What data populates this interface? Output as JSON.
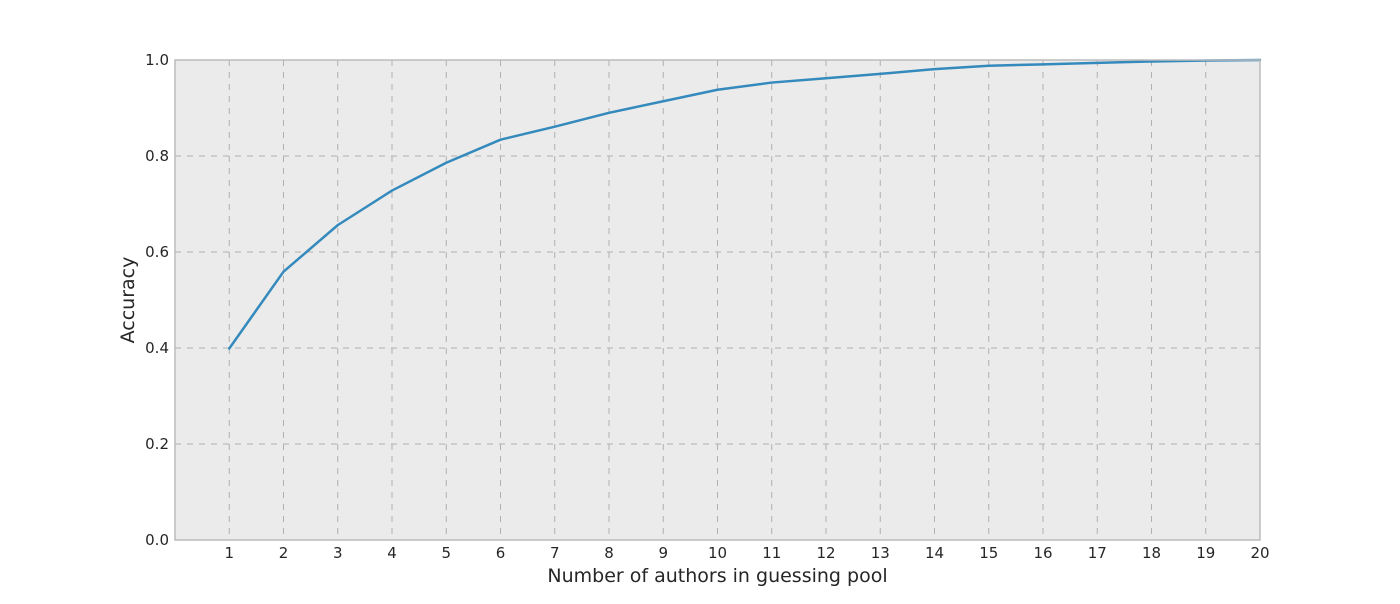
{
  "chart_data": {
    "type": "line",
    "title": "",
    "xlabel": "Number of authors in guessing pool",
    "ylabel": "Accuracy",
    "xlim": [
      0,
      20
    ],
    "ylim": [
      0.0,
      1.0
    ],
    "xticks": [
      1,
      2,
      3,
      4,
      5,
      6,
      7,
      8,
      9,
      10,
      11,
      12,
      13,
      14,
      15,
      16,
      17,
      18,
      19,
      20
    ],
    "yticks": [
      "0.0",
      "0.2",
      "0.4",
      "0.6",
      "0.8",
      "1.0"
    ],
    "grid": true,
    "colors": {
      "plot_background": "#ebebeb",
      "series": "#348abd",
      "grid": "#b0b0b0",
      "frame": "#bcbcbc"
    },
    "series": [
      {
        "x": [
          1,
          2,
          3,
          4,
          5,
          6,
          7,
          8,
          9,
          10,
          11,
          12,
          13,
          14,
          15,
          16,
          17,
          18,
          19,
          20
        ],
        "values": [
          0.399,
          0.559,
          0.656,
          0.728,
          0.786,
          0.834,
          0.861,
          0.89,
          0.914,
          0.938,
          0.953,
          0.962,
          0.971,
          0.981,
          0.988,
          0.991,
          0.994,
          0.997,
          0.999,
          1.0
        ]
      }
    ]
  }
}
